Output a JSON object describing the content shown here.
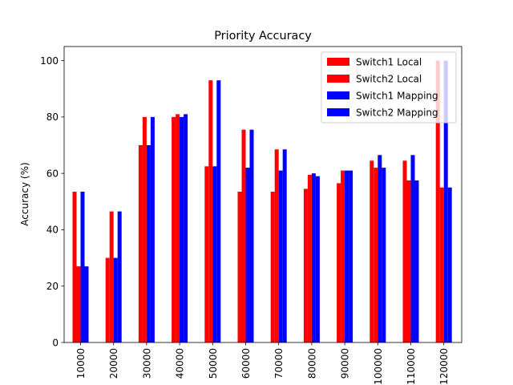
{
  "chart_data": {
    "type": "bar",
    "title": "Priority Accuracy",
    "xlabel": "",
    "ylabel": "Accuracy (%)",
    "ylim": [
      0,
      105
    ],
    "yticks": [
      0,
      20,
      40,
      60,
      80,
      100
    ],
    "grid": false,
    "legend_position": "top-right",
    "categories": [
      "10000",
      "20000",
      "30000",
      "40000",
      "50000",
      "60000",
      "70000",
      "80000",
      "90000",
      "100000",
      "110000",
      "120000"
    ],
    "series": [
      {
        "name": "Switch1 Local",
        "color": "#ff0000",
        "values": [
          53.5,
          30,
          70,
          80,
          62.5,
          53.5,
          53.5,
          54.5,
          56.5,
          64.5,
          64.5,
          100
        ]
      },
      {
        "name": "Switch2 Local",
        "color": "#ff0000",
        "values": [
          27,
          46.5,
          80,
          81,
          93,
          75.5,
          68.5,
          59.5,
          61,
          62,
          57.5,
          55
        ]
      },
      {
        "name": "Switch1 Mapping",
        "color": "#0000ff",
        "values": [
          53.5,
          30,
          70,
          80,
          62.5,
          62,
          61,
          60,
          61,
          66.5,
          66.5,
          100
        ]
      },
      {
        "name": "Switch2 Mapping",
        "color": "#0000ff",
        "values": [
          27,
          46.5,
          80,
          81,
          93,
          75.5,
          68.5,
          59,
          61,
          62,
          57.5,
          55
        ]
      }
    ]
  }
}
